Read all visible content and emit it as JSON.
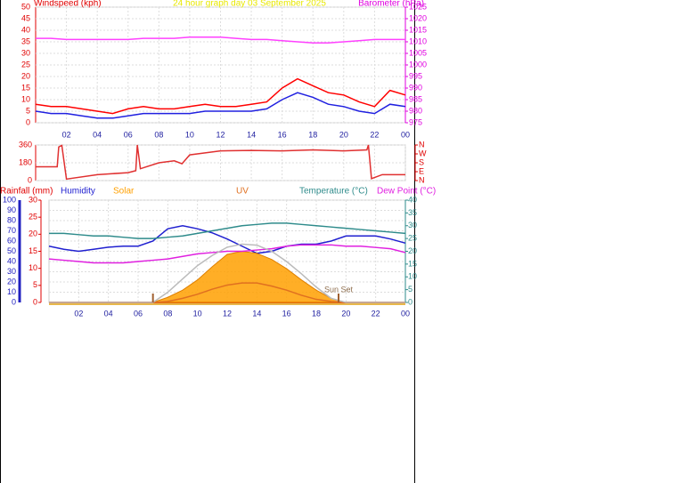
{
  "chart_data": [
    {
      "type": "line",
      "title": "24 hour graph day  03 September 2025",
      "title_color": "#e8e800",
      "y_label": "Windspeed (kph)",
      "y2_label": "Barometer (hPa)",
      "y_color": "#e00000",
      "y2_color": "#e000e0",
      "x": [
        0,
        1,
        2,
        3,
        4,
        5,
        6,
        7,
        8,
        9,
        10,
        11,
        12,
        13,
        14,
        15,
        16,
        17,
        18,
        19,
        20,
        21,
        22,
        23,
        24
      ],
      "xlim": [
        0,
        24
      ],
      "xticks": [
        {
          "value": 2,
          "label": "02"
        },
        {
          "value": 4,
          "label": "04"
        },
        {
          "value": 6,
          "label": "06"
        },
        {
          "value": 8,
          "label": "08"
        },
        10,
        12,
        14,
        16,
        18,
        20,
        22,
        {
          "value": 24,
          "label": "00"
        }
      ],
      "ylim": [
        0,
        50
      ],
      "yticks": [
        0,
        5,
        10,
        15,
        20,
        25,
        30,
        35,
        40,
        45,
        50
      ],
      "y2lim": [
        975,
        1025
      ],
      "y2ticks": [
        975,
        980,
        985,
        990,
        995,
        1000,
        1005,
        1010,
        1015,
        1020,
        1025
      ],
      "grid": true,
      "series": [
        {
          "color": "#ff0000",
          "values": [
            8,
            7,
            7,
            6,
            5,
            4,
            6,
            7,
            6,
            6,
            7,
            8,
            7,
            7,
            8,
            9,
            15,
            19,
            16,
            13,
            12,
            9,
            7,
            14,
            12
          ]
        },
        {
          "color": "#2020e0",
          "values": [
            5,
            4,
            4,
            3,
            2,
            2,
            3,
            4,
            4,
            4,
            4,
            5,
            5,
            5,
            5,
            6,
            10,
            13,
            11,
            8,
            7,
            5,
            4,
            8,
            7
          ]
        },
        {
          "color": "#ff40ff",
          "axis": "y2",
          "values": [
            1011.5,
            1011.5,
            1011,
            1011,
            1011,
            1011,
            1011,
            1011.5,
            1011.5,
            1011.5,
            1012,
            1012,
            1012,
            1011.5,
            1011,
            1011,
            1010.5,
            1010,
            1009.5,
            1009.5,
            1010,
            1010.5,
            1011,
            1011,
            1011
          ]
        }
      ]
    },
    {
      "type": "line",
      "y_color": "#e00000",
      "y2_color": "#e00000",
      "x": [
        0,
        1.4,
        1.5,
        1.7,
        2,
        4,
        6,
        6.5,
        6.6,
        6.8,
        8,
        9,
        9.5,
        10,
        11,
        12,
        14,
        16,
        18,
        20,
        21.5,
        21.6,
        21.8,
        22.5,
        24
      ],
      "xlim": [
        0,
        24
      ],
      "xticks": [
        {
          "value": 2,
          "label": "02"
        },
        {
          "value": 4,
          "label": "04"
        },
        {
          "value": 6,
          "label": "06"
        },
        {
          "value": 8,
          "label": "08"
        },
        10,
        12,
        14,
        16,
        18,
        20,
        22,
        {
          "value": 24,
          "label": "00"
        }
      ],
      "ylim": [
        0,
        360
      ],
      "yticks": [
        0,
        180,
        360
      ],
      "y2lim": [
        0,
        360
      ],
      "y2ticks": [
        {
          "value": 360,
          "label": "N"
        },
        {
          "value": 270,
          "label": "W"
        },
        {
          "value": 180,
          "label": "S"
        },
        {
          "value": 90,
          "label": "E"
        },
        {
          "value": 0,
          "label": "N"
        }
      ],
      "grid": true,
      "series": [
        {
          "color": "#e03030",
          "values": [
            140,
            140,
            340,
            355,
            15,
            60,
            80,
            100,
            360,
            120,
            180,
            200,
            170,
            260,
            280,
            300,
            305,
            300,
            310,
            300,
            310,
            360,
            20,
            60,
            60
          ]
        }
      ]
    },
    {
      "type": "line",
      "y_color": "#2020c0",
      "y2_color": "#e00000",
      "y3_color": "#2e8b8b",
      "x": [
        0,
        1,
        2,
        3,
        4,
        5,
        6,
        7,
        8,
        9,
        10,
        11,
        12,
        13,
        14,
        15,
        16,
        17,
        18,
        19,
        20,
        21,
        22,
        23,
        24
      ],
      "xlim": [
        0,
        24
      ],
      "xticks": [
        {
          "value": 2,
          "label": "02"
        },
        {
          "value": 4,
          "label": "04"
        },
        {
          "value": 6,
          "label": "06"
        },
        {
          "value": 8,
          "label": "08"
        },
        10,
        12,
        14,
        16,
        18,
        20,
        22,
        {
          "value": 24,
          "label": "00"
        }
      ],
      "ylim": [
        0,
        100
      ],
      "yticks": [
        0,
        10,
        20,
        30,
        40,
        50,
        60,
        70,
        80,
        90,
        100
      ],
      "y2lim": [
        0,
        30
      ],
      "y2ticks": [
        0,
        5,
        10,
        15,
        20,
        25,
        30
      ],
      "y3lim": [
        0,
        40
      ],
      "y3ticks": [
        0,
        5,
        10,
        15,
        20,
        25,
        30,
        35,
        40
      ],
      "grid": true,
      "sunrise": 7,
      "sunset": 19.5,
      "annotation": "Sun Set",
      "series": [
        {
          "name": "Rainfall (mm)",
          "color": "#e00000",
          "axis": "y2",
          "values": [
            0,
            0,
            0,
            0,
            0,
            0,
            0,
            0,
            0,
            0,
            0,
            0,
            0,
            0,
            0,
            0,
            0,
            0,
            0,
            0,
            0,
            0,
            0,
            0,
            0
          ]
        },
        {
          "name": "Humidity",
          "color": "#2020d0",
          "values": [
            55,
            52,
            50,
            52,
            54,
            55,
            55,
            60,
            72,
            75,
            72,
            68,
            62,
            55,
            48,
            50,
            55,
            57,
            57,
            60,
            65,
            65,
            65,
            62,
            58
          ]
        },
        {
          "name": "Solar",
          "color": "#ffa000",
          "fill": true,
          "values": [
            0,
            0,
            0,
            0,
            0,
            0,
            0,
            0,
            5,
            12,
            22,
            35,
            47,
            50,
            48,
            42,
            33,
            22,
            12,
            4,
            0,
            0,
            0,
            0,
            0
          ]
        },
        {
          "name": "UV",
          "color": "#e07020",
          "values": [
            0,
            0,
            0,
            0,
            0,
            0,
            0,
            0,
            1,
            4,
            8,
            13,
            17,
            19,
            19,
            16,
            12,
            7,
            3,
            1,
            0,
            0,
            0,
            0,
            0
          ]
        },
        {
          "name": "Temperature (°C)",
          "color": "#2e8b8b",
          "axis": "y3",
          "values": [
            27,
            27,
            26.5,
            26,
            26,
            25.5,
            25,
            25,
            25.5,
            26,
            27,
            28,
            29,
            30,
            30.5,
            31,
            31,
            30.5,
            30,
            29.5,
            29,
            28.5,
            28,
            27.5,
            27
          ]
        },
        {
          "name": "Dew Point (°C)",
          "color": "#e020e0",
          "axis": "y3",
          "values": [
            17,
            16.5,
            16,
            15.5,
            15.5,
            15.5,
            16,
            16.5,
            17,
            18,
            19,
            19.5,
            20,
            20,
            20.5,
            21,
            22,
            22.5,
            22.5,
            22.5,
            22,
            22,
            21.5,
            21,
            19.5
          ]
        },
        {
          "color": "#bbbbbb",
          "values": [
            0,
            0,
            0,
            0,
            0,
            0,
            0,
            0,
            10,
            23,
            36,
            46,
            54,
            57,
            56,
            50,
            40,
            28,
            15,
            4,
            0,
            0,
            0,
            0,
            0
          ]
        }
      ]
    }
  ]
}
